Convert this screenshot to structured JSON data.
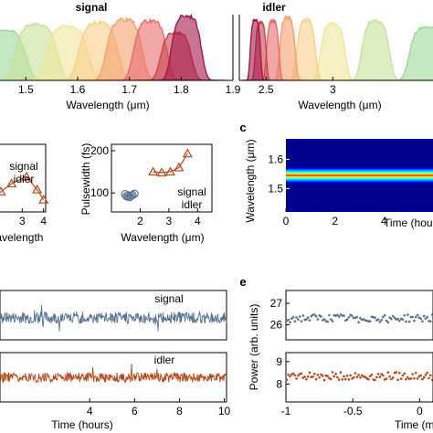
{
  "chart_data": [
    {
      "id": "a-signal",
      "type": "area",
      "title": "signal",
      "xlabel": "Wavelength (μm)",
      "ylabel": "",
      "xlim": [
        1.45,
        1.9
      ],
      "ylim": [
        0,
        1
      ],
      "xticks": [
        {
          "value": 1.5,
          "label": "1.5"
        },
        {
          "value": 1.6,
          "label": "1.6"
        },
        {
          "value": 1.7,
          "label": "1.7"
        },
        {
          "value": 1.8,
          "label": "1.8"
        },
        {
          "value": 1.9,
          "label": "1.9"
        }
      ],
      "series": [
        {
          "center": 1.46,
          "width": 0.035,
          "peak": 0.75,
          "color": "#9fd89a"
        },
        {
          "center": 1.52,
          "width": 0.035,
          "peak": 0.85,
          "color": "#c6e39a"
        },
        {
          "center": 1.58,
          "width": 0.035,
          "peak": 0.82,
          "color": "#f1e69a"
        },
        {
          "center": 1.64,
          "width": 0.033,
          "peak": 0.88,
          "color": "#f8cf8a"
        },
        {
          "center": 1.69,
          "width": 0.03,
          "peak": 0.92,
          "color": "#f3a070"
        },
        {
          "center": 1.74,
          "width": 0.028,
          "peak": 0.9,
          "color": "#e86c6c"
        },
        {
          "center": 1.79,
          "width": 0.026,
          "peak": 0.72,
          "color": "#c9424f"
        },
        {
          "center": 1.81,
          "width": 0.025,
          "peak": 0.98,
          "color": "#a3174b"
        }
      ]
    },
    {
      "id": "a-idler",
      "type": "area",
      "title": "idler",
      "xlabel": "Wavelength (μm)",
      "ylabel": "",
      "xlim": [
        2.3,
        3.75
      ],
      "ylim": [
        0,
        1
      ],
      "xticks": [
        {
          "value": 2.5,
          "label": "2.5"
        },
        {
          "value": 3,
          "label": "3"
        }
      ],
      "series": [
        {
          "center": 3.7,
          "width": 0.11,
          "peak": 0.8,
          "color": "#9fd89a"
        },
        {
          "center": 3.32,
          "width": 0.09,
          "peak": 0.9,
          "color": "#c6e39a"
        },
        {
          "center": 3.0,
          "width": 0.08,
          "peak": 0.86,
          "color": "#f1e69a"
        },
        {
          "center": 2.8,
          "width": 0.06,
          "peak": 0.92,
          "color": "#f8cf8a"
        },
        {
          "center": 2.66,
          "width": 0.05,
          "peak": 0.95,
          "color": "#f3a070"
        },
        {
          "center": 2.55,
          "width": 0.04,
          "peak": 0.9,
          "color": "#e86c6c"
        },
        {
          "center": 2.46,
          "width": 0.035,
          "peak": 0.88,
          "color": "#c9424f"
        },
        {
          "center": 2.42,
          "width": 0.033,
          "peak": 0.92,
          "color": "#a3174b"
        }
      ]
    },
    {
      "id": "b-left",
      "type": "line",
      "xlabel": "Wavelength",
      "ylabel": "",
      "xlim": [
        1.1,
        4.1
      ],
      "ylim": [
        0,
        1
      ],
      "xticks": [
        {
          "value": 3,
          "label": "3"
        },
        {
          "value": 4,
          "label": "4"
        }
      ],
      "legend": [
        "signal",
        "idler"
      ],
      "series": [
        {
          "name": "idler",
          "marker": "triangle",
          "color": "#b5471a",
          "x": [
            1.5,
            2.0,
            2.5,
            3.2,
            3.7,
            4.0
          ],
          "y": [
            0.18,
            0.3,
            0.42,
            0.52,
            0.33,
            0.18
          ]
        }
      ]
    },
    {
      "id": "b-right",
      "type": "line",
      "xlabel": "Wavelength (μm)",
      "ylabel": "Pulsewidth (fs)",
      "xlim": [
        1,
        4.5
      ],
      "ylim": [
        55,
        215
      ],
      "xticks": [
        {
          "value": 2,
          "label": "2"
        },
        {
          "value": 3,
          "label": "3"
        },
        {
          "value": 4,
          "label": "4"
        }
      ],
      "yticks": [
        {
          "value": 100,
          "label": "100"
        },
        {
          "value": 200,
          "label": "200"
        }
      ],
      "legend": [
        "signal",
        "idler"
      ],
      "series": [
        {
          "name": "signal",
          "marker": "circle",
          "color": "#56708f",
          "x": [
            1.48,
            1.53,
            1.58,
            1.63,
            1.68,
            1.73,
            1.8
          ],
          "y": [
            97,
            92,
            94,
            90,
            93,
            95,
            98
          ]
        },
        {
          "name": "idler",
          "marker": "triangle",
          "color": "#b5471a",
          "x": [
            2.45,
            2.75,
            3.05,
            3.35,
            3.65
          ],
          "y": [
            150,
            148,
            150,
            160,
            193
          ]
        }
      ]
    },
    {
      "id": "c",
      "type": "heatmap",
      "xlabel": "Time (hours)",
      "ylabel": "Wavelength (μm)",
      "xlim": [
        0,
        6
      ],
      "ylim": [
        1.42,
        1.67
      ],
      "xticks": [
        {
          "value": 0,
          "label": "0"
        },
        {
          "value": 2,
          "label": "2"
        },
        {
          "value": 4,
          "label": "4"
        }
      ],
      "yticks": [
        {
          "value": 1.5,
          "label": "1.5"
        },
        {
          "value": 1.6,
          "label": "1.6"
        }
      ],
      "center_wavelength": 1.545,
      "band_width": 0.03,
      "colormap": "jet"
    },
    {
      "id": "d-signal",
      "type": "line",
      "legend": [
        "signal"
      ],
      "xlim": [
        0,
        10.1
      ],
      "ylim": [
        0,
        1
      ],
      "series": [
        {
          "name": "signal",
          "color": "#56708f",
          "mean": 0.45,
          "noise": 0.12
        }
      ]
    },
    {
      "id": "d-idler",
      "type": "line",
      "legend": [
        "idler"
      ],
      "xlabel": "Time (hours)",
      "xlim": [
        0,
        10.1
      ],
      "ylim": [
        0,
        1
      ],
      "xticks": [
        {
          "value": 4,
          "label": "4"
        },
        {
          "value": 6,
          "label": "6"
        },
        {
          "value": 8,
          "label": "8"
        },
        {
          "value": 10,
          "label": "10"
        }
      ],
      "series": [
        {
          "name": "idler",
          "color": "#b5471a",
          "mean": 0.5,
          "noise": 0.1
        }
      ]
    },
    {
      "id": "e-signal",
      "type": "scatter",
      "ylabel": "Power (arb. units)",
      "xlim": [
        -1,
        0.1
      ],
      "ylim": [
        25.3,
        27.6
      ],
      "yticks": [
        {
          "value": 26,
          "label": "26"
        },
        {
          "value": 27,
          "label": "27"
        }
      ],
      "series": [
        {
          "name": "signal",
          "color": "#56708f",
          "mean": 26.3,
          "noise": 0.18
        }
      ]
    },
    {
      "id": "e-idler",
      "type": "scatter",
      "xlabel": "Time (m",
      "xlim": [
        -1,
        0.1
      ],
      "ylim": [
        7.2,
        9.4
      ],
      "xticks": [
        {
          "value": -1,
          "label": "-1"
        },
        {
          "value": -0.5,
          "label": "-0.5"
        },
        {
          "value": 0,
          "label": "0"
        }
      ],
      "yticks": [
        {
          "value": 8,
          "label": "8"
        },
        {
          "value": 9,
          "label": "9"
        }
      ],
      "series": [
        {
          "name": "idler",
          "color": "#b5471a",
          "mean": 8.35,
          "noise": 0.18
        }
      ]
    }
  ],
  "panel_labels": {
    "c": "c",
    "e": "e"
  },
  "colors": {
    "signal": "#56708f",
    "idler": "#b5471a"
  }
}
